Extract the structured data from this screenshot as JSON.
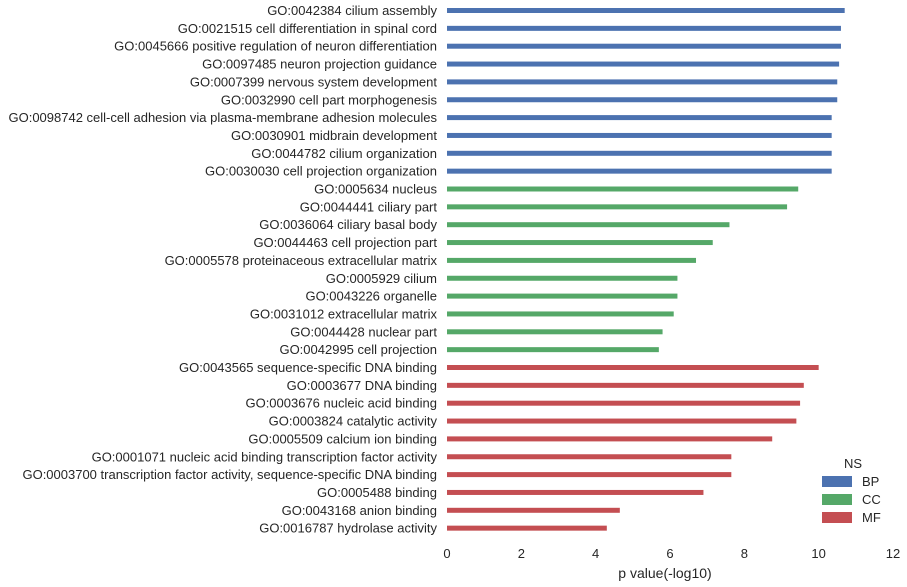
{
  "chart_data": {
    "type": "bar",
    "orientation": "horizontal",
    "xlabel": "p value(-log10)",
    "xlim": [
      0,
      12
    ],
    "xticks": [
      "0",
      "2",
      "4",
      "6",
      "8",
      "10",
      "12"
    ],
    "grid": false,
    "legend": {
      "title": "NS",
      "placement": "bottom-right",
      "entries": [
        {
          "name": "BP",
          "color": "#4c72b0"
        },
        {
          "name": "CC",
          "color": "#55a868"
        },
        {
          "name": "MF",
          "color": "#c44e52"
        }
      ]
    },
    "categories": [
      "GO:0042384 cilium assembly",
      "GO:0021515 cell differentiation in spinal cord",
      "GO:0045666 positive regulation of neuron differentiation",
      "GO:0097485 neuron projection guidance",
      "GO:0007399 nervous system development",
      "GO:0032990 cell part morphogenesis",
      "GO:0098742 cell-cell adhesion via plasma-membrane adhesion molecules",
      "GO:0030901 midbrain development",
      "GO:0044782 cilium organization",
      "GO:0030030 cell projection organization",
      "GO:0005634 nucleus",
      "GO:0044441 ciliary part",
      "GO:0036064 ciliary basal body",
      "GO:0044463 cell projection part",
      "GO:0005578 proteinaceous extracellular matrix",
      "GO:0005929 cilium",
      "GO:0043226 organelle",
      "GO:0031012 extracellular matrix",
      "GO:0044428 nuclear part",
      "GO:0042995 cell projection",
      "GO:0043565 sequence-specific DNA binding",
      "GO:0003677 DNA binding",
      "GO:0003676 nucleic acid binding",
      "GO:0003824 catalytic activity",
      "GO:0005509 calcium ion binding",
      "GO:0001071 nucleic acid binding transcription factor activity",
      "GO:0003700 transcription factor activity, sequence-specific DNA binding",
      "GO:0005488 binding",
      "GO:0043168 anion binding",
      "GO:0016787 hydrolase activity"
    ],
    "values": [
      10.7,
      10.6,
      10.6,
      10.55,
      10.5,
      10.5,
      10.35,
      10.35,
      10.35,
      10.35,
      9.45,
      9.15,
      7.6,
      7.15,
      6.7,
      6.2,
      6.2,
      6.1,
      5.8,
      5.7,
      10.0,
      9.6,
      9.5,
      9.4,
      8.75,
      7.65,
      7.65,
      6.9,
      4.65,
      4.3
    ],
    "groups": [
      "BP",
      "BP",
      "BP",
      "BP",
      "BP",
      "BP",
      "BP",
      "BP",
      "BP",
      "BP",
      "CC",
      "CC",
      "CC",
      "CC",
      "CC",
      "CC",
      "CC",
      "CC",
      "CC",
      "CC",
      "MF",
      "MF",
      "MF",
      "MF",
      "MF",
      "MF",
      "MF",
      "MF",
      "MF",
      "MF"
    ]
  }
}
